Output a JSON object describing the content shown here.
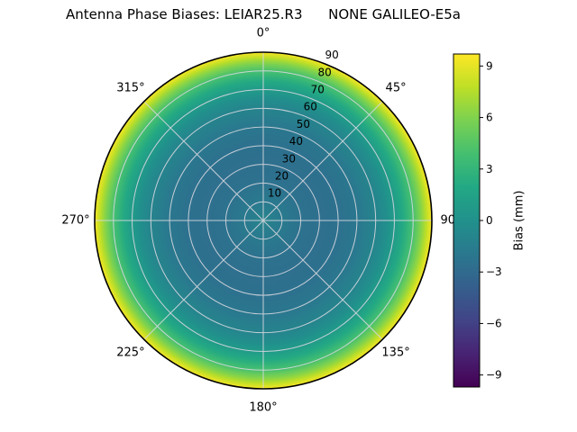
{
  "chart_data": {
    "type": "heatmap",
    "projection": "polar",
    "title": "Antenna Phase Biases: LEIAR25.R3      NONE GALILEO-E5a",
    "angular_ticks": [
      {
        "angle_deg": 0,
        "label": "0°"
      },
      {
        "angle_deg": 45,
        "label": "45°"
      },
      {
        "angle_deg": 90,
        "label": "90°"
      },
      {
        "angle_deg": 135,
        "label": "135°"
      },
      {
        "angle_deg": 180,
        "label": "180°"
      },
      {
        "angle_deg": 225,
        "label": "225°"
      },
      {
        "angle_deg": 270,
        "label": "270°"
      },
      {
        "angle_deg": 315,
        "label": "315°"
      }
    ],
    "radial_ticks": [
      10,
      20,
      30,
      40,
      50,
      60,
      70,
      80,
      90
    ],
    "radial_tick_angle_deg": 22.5,
    "colorbar": {
      "label": "Bias (mm)",
      "ticks": [
        9,
        6,
        3,
        0,
        -3,
        -6,
        -9
      ],
      "vmin": -9.7,
      "vmax": 9.7,
      "colormap": "viridis"
    },
    "profile": {
      "zenith_deg": [
        0,
        10,
        20,
        30,
        40,
        50,
        60,
        65,
        70,
        75,
        80,
        85,
        90
      ],
      "bias_mm": [
        -1.0,
        -1.8,
        -2.4,
        -2.6,
        -2.5,
        -2.0,
        -1.0,
        -0.3,
        0.8,
        2.2,
        4.0,
        6.5,
        9.5
      ]
    }
  },
  "colors": {
    "background": "#ffffff",
    "grid": "#d8d8e0",
    "outline": "#000000",
    "text": "#000000",
    "viridis_stops": [
      "#440154",
      "#482374",
      "#414487",
      "#355f8d",
      "#2a788e",
      "#21918c",
      "#22a884",
      "#44bf70",
      "#7ad151",
      "#bddf26",
      "#fde725"
    ]
  }
}
